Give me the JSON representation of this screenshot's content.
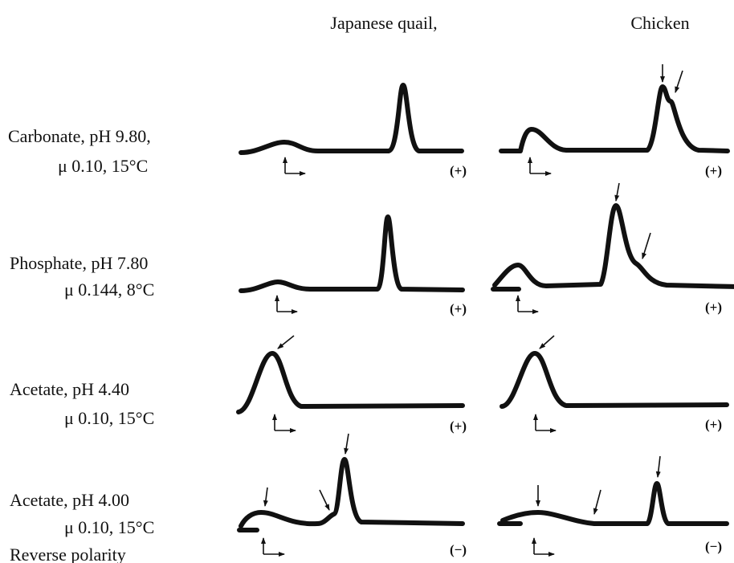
{
  "columns": [
    "Japanese quail,",
    "Chicken"
  ],
  "rows": [
    {
      "label": [
        "Carbonate, pH 9.80,",
        "μ 0.10, 15°C"
      ],
      "polarity": [
        "(+)",
        "(+)"
      ]
    },
    {
      "label": [
        "Phosphate, pH 7.80",
        "μ 0.144, 8°C"
      ],
      "polarity": [
        "(+)",
        "(+)"
      ]
    },
    {
      "label": [
        "Acetate, pH 4.40",
        "μ 0.10, 15°C"
      ],
      "polarity": [
        "(+)",
        "(+)"
      ]
    },
    {
      "label": [
        "Acetate, pH 4.00",
        "μ 0.10, 15°C",
        "Reverse polarity"
      ],
      "polarity": [
        "(−)",
        "(−)"
      ]
    }
  ]
}
